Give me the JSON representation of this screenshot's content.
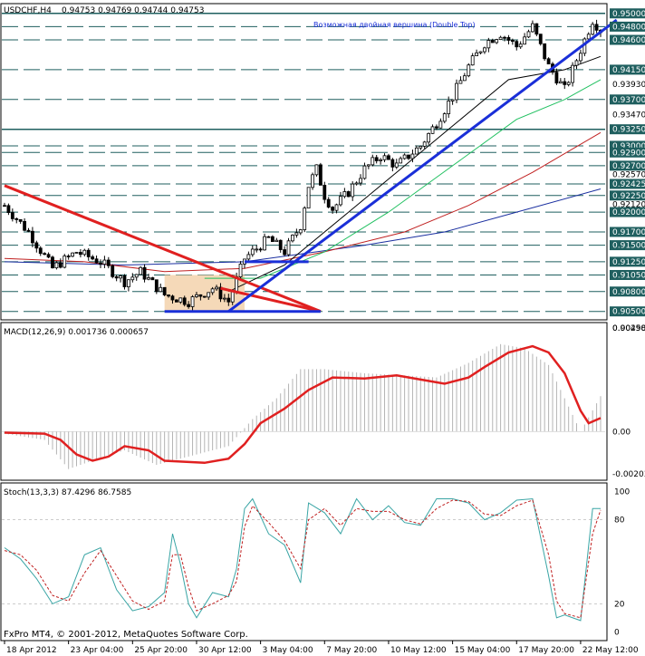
{
  "header": {
    "symbol": "USDCHF,H4",
    "ohlc": "0.94753 0.94769 0.94744 0.94753"
  },
  "annotation": "Возможная двойная вершина (Double Top)",
  "footer": "FxPro MT4, © 2001-2012, MetaQuotes Software Corp.",
  "colors": {
    "bg": "#ffffff",
    "candle": "#000000",
    "hline": "#1f5f5f",
    "trend_blue": "#1a2fd8",
    "trend_red": "#e02020",
    "box_fill": "#f5d9b8",
    "macd_line": "#e02020",
    "macd_hist": "#b4b4b4",
    "stoch_main": "#3aa5a5",
    "stoch_signal": "#c02020",
    "ma_black": "#000000",
    "ma_green": "#20c060",
    "ma_red": "#c02020",
    "ma_blue": "#1a2fa0"
  },
  "chart_data": [
    {
      "type": "candlestick",
      "title": "USDCHF,H4",
      "ylim": [
        0.904,
        0.9512
      ],
      "price_labels": [
        "0.95000",
        "0.94800",
        "0.94600",
        "0.94150",
        "0.93930",
        "0.93700",
        "0.93470",
        "0.93250",
        "0.93000",
        "0.92900",
        "0.92570",
        "0.92700",
        "0.92425",
        "0.92250",
        "0.92120",
        "0.92000",
        "0.91700",
        "0.91500",
        "0.91250",
        "0.91050",
        "0.90800",
        "0.90500",
        "0.90250"
      ],
      "price_values": [
        0.95,
        0.948,
        0.946,
        0.9415,
        0.9393,
        0.937,
        0.9347,
        0.9325,
        0.93,
        0.929,
        0.9257,
        0.927,
        0.92425,
        0.9225,
        0.9212,
        0.92,
        0.917,
        0.915,
        0.9125,
        0.9105,
        0.908,
        0.905,
        0.9025
      ],
      "highlight_labels": [
        "0.95000",
        "0.94800",
        "0.94600",
        "0.94150",
        "0.93700",
        "0.93250",
        "0.93000",
        "0.92900",
        "0.92700",
        "0.92425",
        "0.92250",
        "0.92000",
        "0.91700",
        "0.91500",
        "0.91250",
        "0.91050",
        "0.90800",
        "0.90500"
      ],
      "horizontal_levels": [
        0.95,
        0.948,
        0.946,
        0.9415,
        0.937,
        0.9325,
        0.93,
        0.929,
        0.927,
        0.92425,
        0.9225,
        0.92,
        0.917,
        0.915,
        0.9125,
        0.9105,
        0.908,
        0.905
      ],
      "solid_levels": [
        0.95,
        0.9325
      ],
      "bar_count": 150,
      "anchors": [
        [
          0,
          0.921
        ],
        [
          6,
          0.917
        ],
        [
          12,
          0.9115
        ],
        [
          18,
          0.914
        ],
        [
          24,
          0.9125
        ],
        [
          30,
          0.9095
        ],
        [
          34,
          0.911
        ],
        [
          40,
          0.9075
        ],
        [
          46,
          0.9065
        ],
        [
          52,
          0.9085
        ],
        [
          56,
          0.9065
        ],
        [
          60,
          0.913
        ],
        [
          66,
          0.916
        ],
        [
          70,
          0.914
        ],
        [
          74,
          0.918
        ],
        [
          76,
          0.924
        ],
        [
          78,
          0.9265
        ],
        [
          80,
          0.9225
        ],
        [
          82,
          0.9205
        ],
        [
          86,
          0.923
        ],
        [
          90,
          0.9265
        ],
        [
          94,
          0.9285
        ],
        [
          98,
          0.927
        ],
        [
          104,
          0.93
        ],
        [
          108,
          0.9335
        ],
        [
          112,
          0.9375
        ],
        [
          116,
          0.942
        ],
        [
          120,
          0.9455
        ],
        [
          124,
          0.947
        ],
        [
          128,
          0.945
        ],
        [
          132,
          0.948
        ],
        [
          136,
          0.942
        ],
        [
          140,
          0.9385
        ],
        [
          144,
          0.9445
        ],
        [
          147,
          0.949
        ],
        [
          149,
          0.9475
        ]
      ],
      "ma_black": [
        [
          56,
          0.908
        ],
        [
          70,
          0.912
        ],
        [
          84,
          0.919
        ],
        [
          98,
          0.926
        ],
        [
          112,
          0.933
        ],
        [
          126,
          0.94
        ],
        [
          140,
          0.9415
        ],
        [
          149,
          0.9435
        ]
      ],
      "ma_green": [
        [
          50,
          0.91
        ],
        [
          64,
          0.91
        ],
        [
          80,
          0.914
        ],
        [
          96,
          0.92
        ],
        [
          112,
          0.927
        ],
        [
          128,
          0.934
        ],
        [
          140,
          0.937
        ],
        [
          149,
          0.94
        ]
      ],
      "ma_red": [
        [
          0,
          0.913
        ],
        [
          20,
          0.9125
        ],
        [
          40,
          0.911
        ],
        [
          60,
          0.9115
        ],
        [
          80,
          0.914
        ],
        [
          100,
          0.917
        ],
        [
          116,
          0.921
        ],
        [
          132,
          0.926
        ],
        [
          149,
          0.932
        ]
      ],
      "ma_blue": [
        [
          0,
          0.9125
        ],
        [
          30,
          0.912
        ],
        [
          60,
          0.9125
        ],
        [
          90,
          0.915
        ],
        [
          110,
          0.917
        ],
        [
          128,
          0.92
        ],
        [
          149,
          0.9235
        ]
      ],
      "trendlines_red": [
        [
          [
            0,
            0.924
          ],
          [
            79,
            0.905
          ]
        ]
      ],
      "trendlines_blue": [
        [
          [
            56,
            0.905
          ],
          [
            150,
            0.949
          ]
        ],
        [
          [
            40,
            0.905
          ],
          [
            79,
            0.905
          ]
        ],
        [
          [
            60,
            0.9125
          ],
          [
            76,
            0.9125
          ]
        ]
      ],
      "box": {
        "x0": 40,
        "x1": 60,
        "y0": 0.905,
        "y1": 0.9105
      }
    },
    {
      "type": "line",
      "title": "MACD(12,26,9) 0.001736 0.000657",
      "ylim": [
        -0.00225,
        0.00515
      ],
      "tick_labels": [
        "0.00498",
        "0.00",
        "-0.00203"
      ],
      "tick_values": [
        0.00498,
        0.0,
        -0.00203
      ],
      "signal": [
        [
          0,
          -5e-05
        ],
        [
          10,
          -0.0001
        ],
        [
          14,
          -0.0004
        ],
        [
          18,
          -0.0011
        ],
        [
          22,
          -0.0014
        ],
        [
          26,
          -0.0012
        ],
        [
          30,
          -0.0007
        ],
        [
          36,
          -0.0009
        ],
        [
          40,
          -0.0014
        ],
        [
          50,
          -0.0015
        ],
        [
          56,
          -0.0013
        ],
        [
          60,
          -0.0006
        ],
        [
          64,
          0.0004
        ],
        [
          70,
          0.0011
        ],
        [
          76,
          0.002
        ],
        [
          82,
          0.0026
        ],
        [
          90,
          0.00255
        ],
        [
          98,
          0.0027
        ],
        [
          104,
          0.0025
        ],
        [
          110,
          0.0023
        ],
        [
          116,
          0.0026
        ],
        [
          120,
          0.0031
        ],
        [
          126,
          0.0038
        ],
        [
          132,
          0.0041
        ],
        [
          136,
          0.0038
        ],
        [
          140,
          0.0028
        ],
        [
          144,
          0.001
        ],
        [
          146,
          0.0004
        ],
        [
          149,
          0.00065
        ]
      ],
      "histogram": [
        [
          0,
          -0.0001
        ],
        [
          10,
          -0.0004
        ],
        [
          16,
          -0.0018
        ],
        [
          22,
          -0.0014
        ],
        [
          30,
          -0.0009
        ],
        [
          38,
          -0.0016
        ],
        [
          46,
          -0.0012
        ],
        [
          56,
          -0.0007
        ],
        [
          62,
          0.0006
        ],
        [
          68,
          0.0016
        ],
        [
          74,
          0.003
        ],
        [
          80,
          0.003
        ],
        [
          90,
          0.0028
        ],
        [
          100,
          0.0027
        ],
        [
          108,
          0.0026
        ],
        [
          116,
          0.0033
        ],
        [
          124,
          0.0042
        ],
        [
          130,
          0.004
        ],
        [
          136,
          0.0032
        ],
        [
          140,
          0.0016
        ],
        [
          144,
          0.0
        ],
        [
          149,
          0.0017
        ]
      ]
    },
    {
      "type": "line",
      "title": "Stoch(13,3,3) 87.4296 86.7585",
      "ylim": [
        -5,
        105
      ],
      "tick_labels": [
        "100",
        "80",
        "20",
        "0"
      ],
      "tick_values": [
        100,
        80,
        20,
        0
      ],
      "main": [
        [
          0,
          60
        ],
        [
          4,
          52
        ],
        [
          8,
          38
        ],
        [
          12,
          20
        ],
        [
          16,
          25
        ],
        [
          20,
          55
        ],
        [
          24,
          60
        ],
        [
          28,
          30
        ],
        [
          32,
          15
        ],
        [
          36,
          18
        ],
        [
          40,
          28
        ],
        [
          42,
          70
        ],
        [
          44,
          48
        ],
        [
          46,
          20
        ],
        [
          48,
          10
        ],
        [
          52,
          28
        ],
        [
          56,
          25
        ],
        [
          58,
          45
        ],
        [
          60,
          88
        ],
        [
          62,
          95
        ],
        [
          66,
          70
        ],
        [
          70,
          62
        ],
        [
          74,
          35
        ],
        [
          76,
          92
        ],
        [
          80,
          85
        ],
        [
          84,
          70
        ],
        [
          88,
          95
        ],
        [
          92,
          80
        ],
        [
          96,
          90
        ],
        [
          100,
          78
        ],
        [
          104,
          76
        ],
        [
          108,
          95
        ],
        [
          112,
          95
        ],
        [
          116,
          92
        ],
        [
          120,
          80
        ],
        [
          124,
          85
        ],
        [
          128,
          94
        ],
        [
          132,
          95
        ],
        [
          136,
          40
        ],
        [
          138,
          10
        ],
        [
          140,
          12
        ],
        [
          144,
          8
        ],
        [
          147,
          88
        ],
        [
          149,
          88
        ]
      ],
      "signal": [
        [
          0,
          58
        ],
        [
          4,
          55
        ],
        [
          8,
          44
        ],
        [
          12,
          26
        ],
        [
          16,
          22
        ],
        [
          20,
          42
        ],
        [
          24,
          58
        ],
        [
          28,
          40
        ],
        [
          32,
          22
        ],
        [
          36,
          16
        ],
        [
          40,
          22
        ],
        [
          42,
          55
        ],
        [
          44,
          55
        ],
        [
          46,
          32
        ],
        [
          48,
          15
        ],
        [
          52,
          20
        ],
        [
          56,
          26
        ],
        [
          58,
          36
        ],
        [
          60,
          75
        ],
        [
          62,
          90
        ],
        [
          66,
          78
        ],
        [
          70,
          65
        ],
        [
          74,
          45
        ],
        [
          76,
          80
        ],
        [
          80,
          88
        ],
        [
          84,
          76
        ],
        [
          88,
          88
        ],
        [
          92,
          86
        ],
        [
          96,
          86
        ],
        [
          100,
          80
        ],
        [
          104,
          77
        ],
        [
          108,
          88
        ],
        [
          112,
          94
        ],
        [
          116,
          93
        ],
        [
          120,
          84
        ],
        [
          124,
          83
        ],
        [
          128,
          90
        ],
        [
          132,
          94
        ],
        [
          136,
          55
        ],
        [
          138,
          22
        ],
        [
          140,
          13
        ],
        [
          144,
          10
        ],
        [
          147,
          70
        ],
        [
          149,
          87
        ]
      ]
    }
  ],
  "x_axis": {
    "labels": [
      "18 Apr 2012",
      "23 Apr 04:00",
      "25 Apr 20:00",
      "30 Apr 12:00",
      "3 May 04:00",
      "7 May 20:00",
      "10 May 12:00",
      "15 May 04:00",
      "17 May 20:00",
      "22 May 12:00"
    ],
    "bars": [
      0,
      16,
      32,
      48,
      64,
      80,
      96,
      112,
      128,
      144
    ]
  }
}
